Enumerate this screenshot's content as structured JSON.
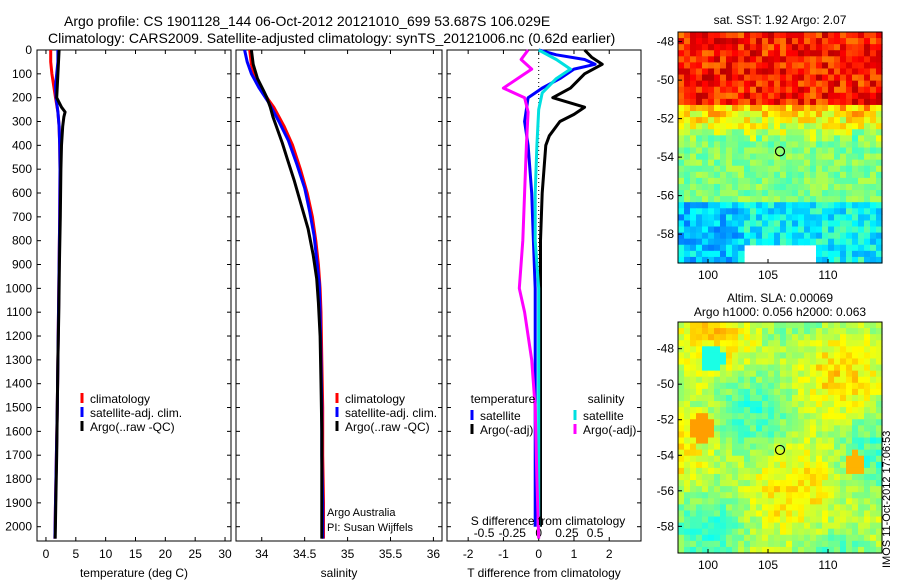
{
  "header": {
    "line1": "Argo profile: CS 1901128_144 06-Oct-2012 20121010_699 53.687S 106.029E",
    "line2": "Climatology: CARS2009. Satellite-adjusted climatology: synTS_20121006.nc (0.62d earlier)"
  },
  "colors": {
    "climatology": "#ff0000",
    "satellite": "#0000ff",
    "argo": "#000000",
    "sal_satellite": "#00e0e0",
    "sal_argo": "#ff00ff"
  },
  "credit": {
    "line1": "Argo Australia",
    "line2": "PI: Susan Wijffels"
  },
  "watermark": "IMOS 11-Oct-2012 17:06:53",
  "chart_data": [
    {
      "id": "temperature",
      "type": "line",
      "xlabel": "temperature (deg C)",
      "xlim": [
        -1.5,
        31
      ],
      "ylim": [
        2060,
        0
      ],
      "y_reversed": true,
      "xticks": [
        0,
        5,
        10,
        15,
        20,
        25,
        30
      ],
      "yticks": [
        0,
        100,
        200,
        300,
        400,
        500,
        600,
        700,
        800,
        900,
        1000,
        1100,
        1200,
        1300,
        1400,
        1500,
        1600,
        1700,
        1800,
        1900,
        2000
      ],
      "legend": [
        "climatology",
        "satellite-adj. clim.",
        "Argo(..raw -QC)"
      ],
      "legend_position": "lower-right",
      "series": [
        {
          "name": "climatology",
          "color": "#ff0000",
          "points": [
            [
              0.8,
              0
            ],
            [
              0.8,
              50
            ],
            [
              1.0,
              100
            ],
            [
              1.3,
              150
            ],
            [
              1.6,
              200
            ],
            [
              2.0,
              260
            ],
            [
              2.2,
              320
            ],
            [
              2.3,
              400
            ],
            [
              2.35,
              500
            ],
            [
              2.3,
              700
            ],
            [
              2.2,
              900
            ],
            [
              2.1,
              1100
            ],
            [
              2.0,
              1300
            ],
            [
              1.9,
              1500
            ],
            [
              1.75,
              1700
            ],
            [
              1.6,
              1900
            ],
            [
              1.5,
              2050
            ]
          ]
        },
        {
          "name": "satellite-adj. clim.",
          "color": "#0000ff",
          "points": [
            [
              2.0,
              0
            ],
            [
              2.0,
              50
            ],
            [
              1.8,
              100
            ],
            [
              1.6,
              150
            ],
            [
              1.7,
              200
            ],
            [
              2.0,
              260
            ],
            [
              2.2,
              320
            ],
            [
              2.3,
              400
            ],
            [
              2.35,
              500
            ],
            [
              2.3,
              700
            ],
            [
              2.2,
              900
            ],
            [
              2.1,
              1100
            ],
            [
              2.0,
              1300
            ],
            [
              1.9,
              1500
            ],
            [
              1.75,
              1700
            ],
            [
              1.6,
              1900
            ],
            [
              1.5,
              2050
            ]
          ]
        },
        {
          "name": "Argo(..raw -QC)",
          "color": "#000000",
          "points": [
            [
              2.2,
              0
            ],
            [
              2.1,
              50
            ],
            [
              2.0,
              100
            ],
            [
              1.9,
              150
            ],
            [
              1.8,
              200
            ],
            [
              2.6,
              240
            ],
            [
              3.2,
              260
            ],
            [
              3.0,
              280
            ],
            [
              2.8,
              320
            ],
            [
              2.6,
              400
            ],
            [
              2.5,
              500
            ],
            [
              2.4,
              700
            ],
            [
              2.25,
              900
            ],
            [
              2.15,
              1100
            ],
            [
              2.0,
              1300
            ],
            [
              1.9,
              1500
            ],
            [
              1.8,
              1700
            ],
            [
              1.65,
              1900
            ],
            [
              1.55,
              2050
            ]
          ]
        }
      ]
    },
    {
      "id": "salinity",
      "type": "line",
      "xlabel": "salinity",
      "xlim": [
        33.7,
        36.1
      ],
      "ylim": [
        2060,
        0
      ],
      "y_reversed": true,
      "xticks": [
        34,
        34.5,
        35,
        35.5,
        36
      ],
      "legend": [
        "climatology",
        "satellite-adj. clim.",
        "Argo(..raw -QC)"
      ],
      "legend_position": "lower-right",
      "series": [
        {
          "name": "climatology",
          "color": "#ff0000",
          "points": [
            [
              33.86,
              0
            ],
            [
              33.88,
              60
            ],
            [
              33.93,
              120
            ],
            [
              34.02,
              180
            ],
            [
              34.14,
              240
            ],
            [
              34.26,
              320
            ],
            [
              34.36,
              400
            ],
            [
              34.45,
              500
            ],
            [
              34.53,
              600
            ],
            [
              34.59,
              700
            ],
            [
              34.63,
              800
            ],
            [
              34.66,
              900
            ],
            [
              34.68,
              1000
            ],
            [
              34.69,
              1100
            ],
            [
              34.7,
              1300
            ],
            [
              34.71,
              1500
            ],
            [
              34.71,
              1700
            ],
            [
              34.72,
              1900
            ],
            [
              34.72,
              2050
            ]
          ]
        },
        {
          "name": "satellite-adj. clim.",
          "color": "#0000ff",
          "points": [
            [
              33.8,
              0
            ],
            [
              33.83,
              50
            ],
            [
              33.88,
              100
            ],
            [
              33.97,
              160
            ],
            [
              34.08,
              220
            ],
            [
              34.2,
              300
            ],
            [
              34.31,
              380
            ],
            [
              34.41,
              480
            ],
            [
              34.5,
              580
            ],
            [
              34.56,
              680
            ],
            [
              34.61,
              780
            ],
            [
              34.64,
              880
            ],
            [
              34.67,
              980
            ],
            [
              34.68,
              1100
            ],
            [
              34.69,
              1300
            ],
            [
              34.7,
              1500
            ],
            [
              34.7,
              1700
            ],
            [
              34.71,
              1900
            ],
            [
              34.71,
              2050
            ]
          ]
        },
        {
          "name": "Argo(..raw -QC)",
          "color": "#000000",
          "points": [
            [
              33.88,
              0
            ],
            [
              33.9,
              60
            ],
            [
              33.95,
              120
            ],
            [
              34.02,
              170
            ],
            [
              34.06,
              200
            ],
            [
              34.1,
              240
            ],
            [
              34.13,
              280
            ],
            [
              34.18,
              330
            ],
            [
              34.24,
              390
            ],
            [
              34.3,
              460
            ],
            [
              34.38,
              550
            ],
            [
              34.46,
              650
            ],
            [
              34.54,
              750
            ],
            [
              34.6,
              860
            ],
            [
              34.64,
              960
            ],
            [
              34.66,
              1060
            ],
            [
              34.68,
              1200
            ],
            [
              34.69,
              1400
            ],
            [
              34.7,
              1600
            ],
            [
              34.7,
              1800
            ],
            [
              34.7,
              2050
            ]
          ]
        }
      ]
    },
    {
      "id": "difference",
      "type": "line",
      "xlabel": "T difference from climatology",
      "xlabel2": "S difference from climatology",
      "xlim": [
        -2.6,
        2.9
      ],
      "ylim": [
        2060,
        0
      ],
      "y_reversed": true,
      "xticks": [
        -2,
        -1,
        0,
        1,
        2
      ],
      "xticks_top_labels": [
        "-0.5",
        "-0.25",
        "0",
        "0.25",
        "0.5"
      ],
      "legend_groups": [
        {
          "title": "temperature",
          "entries": [
            "satellite",
            "Argo(-adj)"
          ]
        },
        {
          "title": "salinity",
          "entries": [
            "satellite",
            "Argo(-adj)"
          ]
        }
      ],
      "series": [
        {
          "name": "temperature satellite",
          "color": "#0000ff",
          "points": [
            [
              0,
              0
            ],
            [
              0.5,
              20
            ],
            [
              1.3,
              40
            ],
            [
              1.6,
              60
            ],
            [
              1.0,
              80
            ],
            [
              0.6,
              120
            ],
            [
              0.1,
              160
            ],
            [
              -0.3,
              200
            ],
            [
              -0.4,
              300
            ],
            [
              -0.3,
              400
            ],
            [
              -0.2,
              600
            ],
            [
              -0.15,
              800
            ],
            [
              -0.1,
              1000
            ],
            [
              -0.1,
              1500
            ],
            [
              -0.1,
              2000
            ]
          ]
        },
        {
          "name": "temperature Argo(-adj)",
          "color": "#000000",
          "points": [
            [
              1.3,
              0
            ],
            [
              1.5,
              30
            ],
            [
              1.8,
              60
            ],
            [
              1.3,
              100
            ],
            [
              0.9,
              160
            ],
            [
              0.4,
              200
            ],
            [
              1.3,
              240
            ],
            [
              1.0,
              270
            ],
            [
              0.6,
              300
            ],
            [
              0.3,
              360
            ],
            [
              0.2,
              400
            ],
            [
              0.1,
              600
            ],
            [
              0.05,
              800
            ],
            [
              0.05,
              1000
            ],
            [
              0.05,
              1500
            ],
            [
              0.05,
              2000
            ]
          ]
        },
        {
          "name": "salinity satellite",
          "color": "#00e0e0",
          "points": [
            [
              0,
              0
            ],
            [
              0.5,
              40
            ],
            [
              0.9,
              80
            ],
            [
              0.5,
              120
            ],
            [
              0.1,
              180
            ],
            [
              0,
              250
            ],
            [
              -0.05,
              400
            ],
            [
              -0.1,
              600
            ],
            [
              -0.1,
              800
            ],
            [
              0,
              1000
            ],
            [
              0,
              1500
            ],
            [
              0,
              2000
            ]
          ]
        },
        {
          "name": "salinity Argo(-adj)",
          "color": "#ff00ff",
          "points": [
            [
              -0.3,
              0
            ],
            [
              -0.5,
              40
            ],
            [
              -0.2,
              80
            ],
            [
              -0.6,
              120
            ],
            [
              -1.0,
              160
            ],
            [
              -0.4,
              200
            ],
            [
              -0.3,
              260
            ],
            [
              -0.35,
              400
            ],
            [
              -0.4,
              600
            ],
            [
              -0.45,
              800
            ],
            [
              -0.55,
              1000
            ],
            [
              -0.4,
              1100
            ],
            [
              -0.2,
              1300
            ],
            [
              -0.1,
              1500
            ],
            [
              -0.05,
              1800
            ],
            [
              0,
              2050
            ]
          ]
        }
      ]
    },
    {
      "id": "sst_map",
      "type": "heatmap",
      "title": "sat. SST: 1.92 Argo: 2.07",
      "xlim": [
        97.5,
        114.5
      ],
      "ylim": [
        -59.5,
        -47.5
      ],
      "xticks": [
        100,
        105,
        110
      ],
      "yticks": [
        -48,
        -50,
        -52,
        -54,
        -56,
        -58
      ],
      "marker": {
        "lon": 106.0,
        "lat": -53.7
      }
    },
    {
      "id": "sla_map",
      "type": "heatmap",
      "title": "Altim. SLA: 0.00069",
      "subtitle": "Argo h1000: 0.056 h2000: 0.063",
      "xlim": [
        97.5,
        114.5
      ],
      "ylim": [
        -59.5,
        -46.5
      ],
      "xticks": [
        100,
        105,
        110
      ],
      "yticks": [
        -48,
        -50,
        -52,
        -54,
        -56,
        -58
      ],
      "marker": {
        "lon": 106.0,
        "lat": -53.7
      }
    }
  ]
}
